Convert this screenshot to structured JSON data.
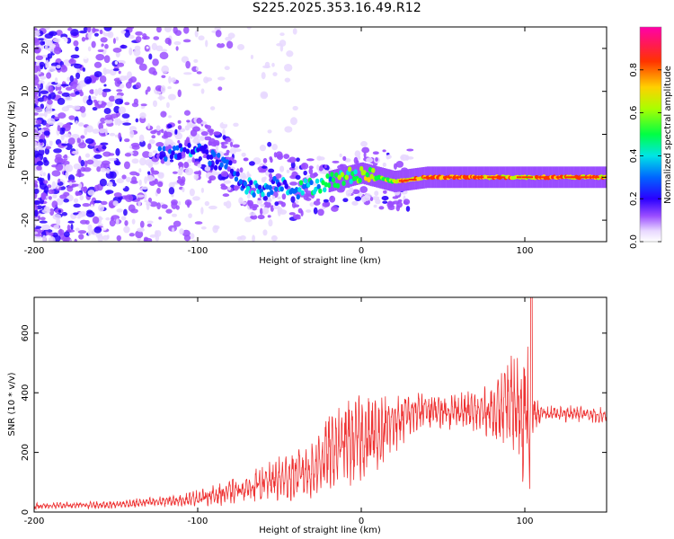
{
  "title": "S225.2025.353.16.49.R12",
  "chart_data": [
    {
      "type": "heatmap",
      "title": "S225.2025.353.16.49.R12",
      "xlabel": "Height of straight line (km)",
      "ylabel": "Frequency (Hz)",
      "xlim": [
        -200,
        150
      ],
      "ylim": [
        -25,
        25
      ],
      "xticks": [
        -200,
        -100,
        0,
        100
      ],
      "yticks": [
        -20,
        -10,
        0,
        10,
        20
      ],
      "colorbar": {
        "label": "Normalized spectral amplitude",
        "range": [
          0,
          1
        ],
        "ticks": [
          0.0,
          0.2,
          0.4,
          0.6,
          0.8
        ]
      },
      "signal_track": {
        "x": [
          -120,
          -110,
          -100,
          -90,
          -80,
          -70,
          -60,
          -50,
          -40,
          -30,
          -20,
          -10,
          0,
          10,
          20,
          40,
          60,
          80,
          100,
          110,
          130,
          150
        ],
        "freq": [
          -5,
          -4,
          -3,
          -6,
          -8,
          -12,
          -13,
          -11,
          -13,
          -12,
          -11,
          -10,
          -9,
          -10,
          -11,
          -10,
          -10,
          -10,
          -10,
          -10,
          -10,
          -10
        ],
        "amplitude": [
          0.25,
          0.3,
          0.3,
          0.3,
          0.3,
          0.35,
          0.35,
          0.35,
          0.4,
          0.45,
          0.5,
          0.55,
          0.65,
          0.6,
          0.7,
          0.85,
          0.85,
          0.8,
          0.7,
          0.85,
          0.8,
          0.75
        ]
      }
    },
    {
      "type": "line",
      "xlabel": "Height of straight line (km)",
      "ylabel": "SNR (10 * v/v)",
      "xlim": [
        -200,
        150
      ],
      "ylim": [
        0,
        720
      ],
      "xticks": [
        -200,
        -100,
        0,
        100
      ],
      "yticks": [
        0,
        200,
        400,
        600
      ],
      "color": "#ee3030",
      "envelope": {
        "x": [
          -200,
          -150,
          -110,
          -90,
          -70,
          -50,
          -30,
          -20,
          -10,
          0,
          10,
          20,
          30,
          40,
          50,
          60,
          70,
          80,
          90,
          95,
          100,
          103,
          105,
          110,
          130,
          150
        ],
        "mean": [
          20,
          25,
          40,
          55,
          80,
          110,
          140,
          200,
          230,
          250,
          260,
          300,
          330,
          340,
          340,
          340,
          335,
          340,
          350,
          360,
          340,
          300,
          330,
          330,
          330,
          325
        ],
        "amp": [
          10,
          12,
          18,
          30,
          45,
          65,
          90,
          110,
          130,
          130,
          120,
          90,
          70,
          65,
          60,
          55,
          60,
          80,
          140,
          180,
          220,
          240,
          60,
          25,
          25,
          25
        ]
      },
      "peak": {
        "x": 104,
        "y": 720
      }
    }
  ]
}
